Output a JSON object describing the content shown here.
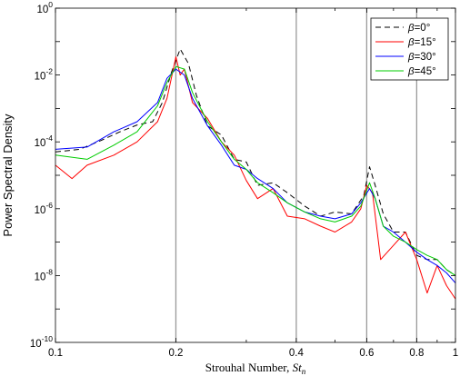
{
  "chart_data": {
    "type": "line",
    "xscale": "log",
    "yscale": "log",
    "xlim": [
      0.1,
      1
    ],
    "ylim": [
      1e-10,
      1
    ],
    "xlabel": "Strouhal Number, ",
    "xlabel_math": "St",
    "xlabel_sub": "n",
    "ylabel": "Power Spectral Density",
    "x_ticks": [
      {
        "value": 0.1,
        "label": "0.1"
      },
      {
        "value": 0.2,
        "label": "0.2"
      },
      {
        "value": 0.4,
        "label": "0.4"
      },
      {
        "value": 0.6,
        "label": "0.6"
      },
      {
        "value": 0.8,
        "label": "0.8"
      },
      {
        "value": 1,
        "label": "1"
      }
    ],
    "y_ticks": [
      {
        "value": 1e-10,
        "base": "10",
        "exp": "-10"
      },
      {
        "value": 1e-08,
        "base": "10",
        "exp": "-8"
      },
      {
        "value": 1e-06,
        "base": "10",
        "exp": "-6"
      },
      {
        "value": 0.0001,
        "base": "10",
        "exp": "-4"
      },
      {
        "value": 0.01,
        "base": "10",
        "exp": "-2"
      },
      {
        "value": 1,
        "base": "10",
        "exp": "0"
      }
    ],
    "vertical_lines": [
      0.2,
      0.4,
      0.6,
      0.8
    ],
    "grid": false,
    "legend_position": "top-right",
    "series": [
      {
        "name": "=0°",
        "symbol": "β",
        "color": "#000000",
        "dash": "6,4",
        "points": [
          [
            0.1,
            5e-05
          ],
          [
            0.115,
            6e-05
          ],
          [
            0.13,
            0.00011
          ],
          [
            0.145,
            0.0002
          ],
          [
            0.16,
            0.00032
          ],
          [
            0.175,
            0.0004
          ],
          [
            0.185,
            0.0015
          ],
          [
            0.195,
            0.012
          ],
          [
            0.205,
            0.06
          ],
          [
            0.215,
            0.022
          ],
          [
            0.225,
            0.0025
          ],
          [
            0.24,
            0.0003
          ],
          [
            0.26,
            0.00016
          ],
          [
            0.28,
            3e-05
          ],
          [
            0.3,
            2.5e-05
          ],
          [
            0.32,
            5e-06
          ],
          [
            0.35,
            6e-06
          ],
          [
            0.38,
            3e-06
          ],
          [
            0.42,
            1.2e-06
          ],
          [
            0.46,
            6e-07
          ],
          [
            0.5,
            8e-07
          ],
          [
            0.55,
            7e-07
          ],
          [
            0.59,
            2.5e-06
          ],
          [
            0.61,
            1.8e-05
          ],
          [
            0.63,
            5e-06
          ],
          [
            0.66,
            7e-07
          ],
          [
            0.7,
            2e-07
          ],
          [
            0.75,
            2e-07
          ],
          [
            0.8,
            4e-08
          ],
          [
            0.85,
            3e-08
          ],
          [
            0.9,
            3e-08
          ],
          [
            0.95,
            1.5e-08
          ],
          [
            1,
            1e-08
          ]
        ]
      },
      {
        "name": "=15°",
        "symbol": "β",
        "color": "#ff0000",
        "dash": "",
        "points": [
          [
            0.1,
            2e-05
          ],
          [
            0.11,
            8e-06
          ],
          [
            0.12,
            2e-05
          ],
          [
            0.14,
            4e-05
          ],
          [
            0.16,
            0.0001
          ],
          [
            0.18,
            0.0004
          ],
          [
            0.19,
            0.002
          ],
          [
            0.2,
            0.035
          ],
          [
            0.205,
            0.01
          ],
          [
            0.21,
            0.015
          ],
          [
            0.22,
            0.0015
          ],
          [
            0.24,
            0.0005
          ],
          [
            0.26,
            0.0001
          ],
          [
            0.28,
            4e-05
          ],
          [
            0.3,
            7e-06
          ],
          [
            0.32,
            2e-06
          ],
          [
            0.35,
            4e-06
          ],
          [
            0.38,
            6e-07
          ],
          [
            0.42,
            5e-07
          ],
          [
            0.46,
            3e-07
          ],
          [
            0.5,
            2e-07
          ],
          [
            0.55,
            4e-07
          ],
          [
            0.58,
            1e-06
          ],
          [
            0.6,
            5e-06
          ],
          [
            0.62,
            3e-06
          ],
          [
            0.65,
            3e-08
          ],
          [
            0.7,
            8e-08
          ],
          [
            0.75,
            2e-07
          ],
          [
            0.8,
            3e-08
          ],
          [
            0.85,
            3e-09
          ],
          [
            0.9,
            2e-08
          ],
          [
            0.95,
            5e-09
          ],
          [
            1,
            2e-09
          ]
        ]
      },
      {
        "name": "=30°",
        "symbol": "β",
        "color": "#0000ff",
        "dash": "",
        "points": [
          [
            0.1,
            6e-05
          ],
          [
            0.12,
            7e-05
          ],
          [
            0.14,
            0.0002
          ],
          [
            0.16,
            0.0004
          ],
          [
            0.18,
            0.0015
          ],
          [
            0.19,
            0.008
          ],
          [
            0.2,
            0.015
          ],
          [
            0.21,
            0.01
          ],
          [
            0.22,
            0.002
          ],
          [
            0.24,
            0.0003
          ],
          [
            0.26,
            8e-05
          ],
          [
            0.28,
            2e-05
          ],
          [
            0.3,
            1.5e-05
          ],
          [
            0.32,
            8e-06
          ],
          [
            0.35,
            4e-06
          ],
          [
            0.38,
            1.5e-06
          ],
          [
            0.42,
            8e-07
          ],
          [
            0.46,
            6e-07
          ],
          [
            0.5,
            5e-07
          ],
          [
            0.55,
            7e-07
          ],
          [
            0.58,
            1.5e-06
          ],
          [
            0.61,
            4e-06
          ],
          [
            0.63,
            2e-06
          ],
          [
            0.66,
            3e-07
          ],
          [
            0.7,
            2e-07
          ],
          [
            0.75,
            1e-07
          ],
          [
            0.8,
            5e-08
          ],
          [
            0.85,
            3e-08
          ],
          [
            0.9,
            2e-08
          ],
          [
            0.95,
            1.2e-08
          ],
          [
            1,
            6e-09
          ]
        ]
      },
      {
        "name": "=45°",
        "symbol": "β",
        "color": "#00cc00",
        "dash": "",
        "points": [
          [
            0.1,
            4e-05
          ],
          [
            0.12,
            3e-05
          ],
          [
            0.14,
            8e-05
          ],
          [
            0.16,
            0.0002
          ],
          [
            0.18,
            0.0012
          ],
          [
            0.19,
            0.006
          ],
          [
            0.2,
            0.018
          ],
          [
            0.21,
            0.015
          ],
          [
            0.22,
            0.003
          ],
          [
            0.24,
            0.0004
          ],
          [
            0.26,
            0.0001
          ],
          [
            0.28,
            3e-05
          ],
          [
            0.3,
            1.5e-05
          ],
          [
            0.32,
            6e-06
          ],
          [
            0.35,
            3e-06
          ],
          [
            0.38,
            1.5e-06
          ],
          [
            0.42,
            8e-07
          ],
          [
            0.46,
            5e-07
          ],
          [
            0.5,
            4e-07
          ],
          [
            0.55,
            6e-07
          ],
          [
            0.58,
            1.2e-06
          ],
          [
            0.61,
            6e-06
          ],
          [
            0.63,
            2e-06
          ],
          [
            0.66,
            3e-07
          ],
          [
            0.7,
            1.5e-07
          ],
          [
            0.75,
            1e-07
          ],
          [
            0.8,
            6e-08
          ],
          [
            0.85,
            4e-08
          ],
          [
            0.9,
            3e-08
          ],
          [
            0.95,
            1.5e-08
          ],
          [
            1,
            1e-08
          ]
        ]
      }
    ]
  }
}
